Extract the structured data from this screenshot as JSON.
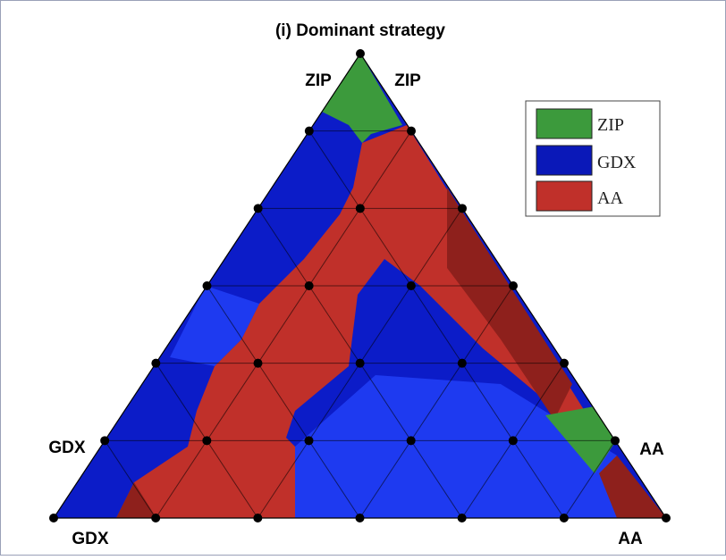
{
  "title": "(i) Dominant strategy",
  "vertex_labels": {
    "top_left": "ZIP",
    "top_right": "ZIP",
    "left_upper": "GDX",
    "left_lower": "GDX",
    "right_upper": "AA",
    "right_lower": "AA"
  },
  "legend": [
    {
      "label": "ZIP",
      "color": "#3c9a3c"
    },
    {
      "label": "GDX",
      "color": "#0a18b8"
    },
    {
      "label": "AA",
      "color": "#c0302a"
    }
  ],
  "grid_divisions": 6,
  "colors": {
    "zip": "#3c9a3c",
    "gdx": "#0c1cc8",
    "gdx_light": "#1e3af0",
    "aa": "#c0302a",
    "aa_dark": "#8e201c",
    "edge": "#000000"
  }
}
